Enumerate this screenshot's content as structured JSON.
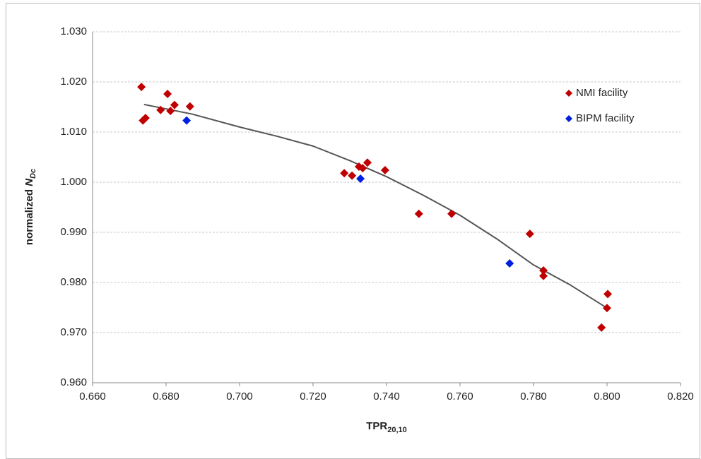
{
  "chart_data": {
    "type": "scatter",
    "x_label": {
      "text": "TPR",
      "sub": "20,10"
    },
    "y_label": {
      "text": "normalized ",
      "var": "N",
      "sub": "Dc"
    },
    "xlim": [
      0.66,
      0.82
    ],
    "xticks": [
      {
        "value": 0.66,
        "label": "0.660"
      },
      {
        "value": 0.68,
        "label": "0.680"
      },
      {
        "value": 0.7,
        "label": "0.700"
      },
      {
        "value": 0.72,
        "label": "0.720"
      },
      {
        "value": 0.74,
        "label": "0.740"
      },
      {
        "value": 0.76,
        "label": "0.760"
      },
      {
        "value": 0.78,
        "label": "0.780"
      },
      {
        "value": 0.8,
        "label": "0.800"
      },
      {
        "value": 0.82,
        "label": "0.820"
      }
    ],
    "ylim": [
      0.96,
      1.03
    ],
    "yticks": [
      {
        "value": 0.96,
        "label": "0.960"
      },
      {
        "value": 0.97,
        "label": "0.970"
      },
      {
        "value": 0.98,
        "label": "0.980"
      },
      {
        "value": 0.99,
        "label": "0.990"
      },
      {
        "value": 1.0,
        "label": "1.000"
      },
      {
        "value": 1.01,
        "label": "1.010"
      },
      {
        "value": 1.02,
        "label": "1.020"
      },
      {
        "value": 1.03,
        "label": "1.030"
      }
    ],
    "grid": true,
    "legend": "top-right",
    "series": [
      {
        "name": "NMI facility",
        "color": "#c00000",
        "x": [
          0.6733,
          0.6737,
          0.6744,
          0.6785,
          0.6804,
          0.6812,
          0.6823,
          0.6865,
          0.7285,
          0.7306,
          0.7325,
          0.7335,
          0.7348,
          0.7396,
          0.7488,
          0.7577,
          0.779,
          0.7827,
          0.7827,
          0.7985,
          0.8002,
          0.8
        ],
        "values": [
          1.019,
          1.0123,
          1.0128,
          1.0144,
          1.0176,
          1.0142,
          1.0154,
          1.0151,
          1.0018,
          1.0013,
          1.0031,
          1.0028,
          1.0039,
          1.0024,
          0.9937,
          0.9937,
          0.9897,
          0.9824,
          0.9813,
          0.971,
          0.9777,
          0.9749
        ]
      },
      {
        "name": "BIPM facility",
        "color": "#0020e0",
        "x": [
          0.6856,
          0.7329,
          0.7735
        ],
        "values": [
          1.0123,
          1.0007,
          0.9838
        ]
      }
    ],
    "trendline": {
      "color": "#555555",
      "x": [
        0.674,
        0.687,
        0.7,
        0.71,
        0.72,
        0.73,
        0.74,
        0.75,
        0.76,
        0.77,
        0.78,
        0.79,
        0.8
      ],
      "values": [
        1.0155,
        1.0136,
        1.011,
        1.0092,
        1.0072,
        1.0043,
        1.0011,
        0.9974,
        0.9934,
        0.9887,
        0.9835,
        0.9795,
        0.9749
      ]
    }
  }
}
